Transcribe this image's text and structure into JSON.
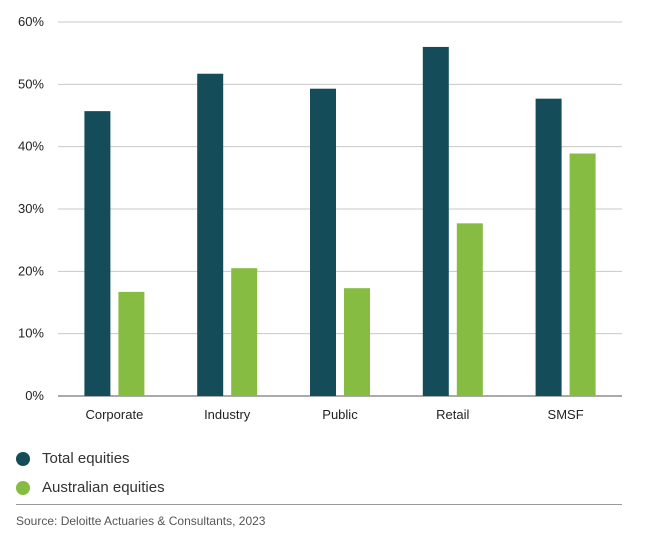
{
  "chart_data": {
    "type": "bar",
    "categories": [
      "Corporate",
      "Industry",
      "Public",
      "Retail",
      "SMSF"
    ],
    "series": [
      {
        "name": "Total equities",
        "color": "#154c5a",
        "values": [
          45.7,
          51.7,
          49.3,
          56.0,
          47.7
        ]
      },
      {
        "name": "Australian equities",
        "color": "#86bc41",
        "values": [
          16.7,
          20.5,
          17.3,
          27.7,
          38.9
        ]
      }
    ],
    "yticks": [
      "0%",
      "10%",
      "20%",
      "30%",
      "40%",
      "50%",
      "60%"
    ],
    "ylim": [
      0,
      60
    ],
    "grid": true,
    "legend_placement": "bottom-left",
    "source": "Source: Deloitte Actuaries & Consultants, 2023"
  }
}
